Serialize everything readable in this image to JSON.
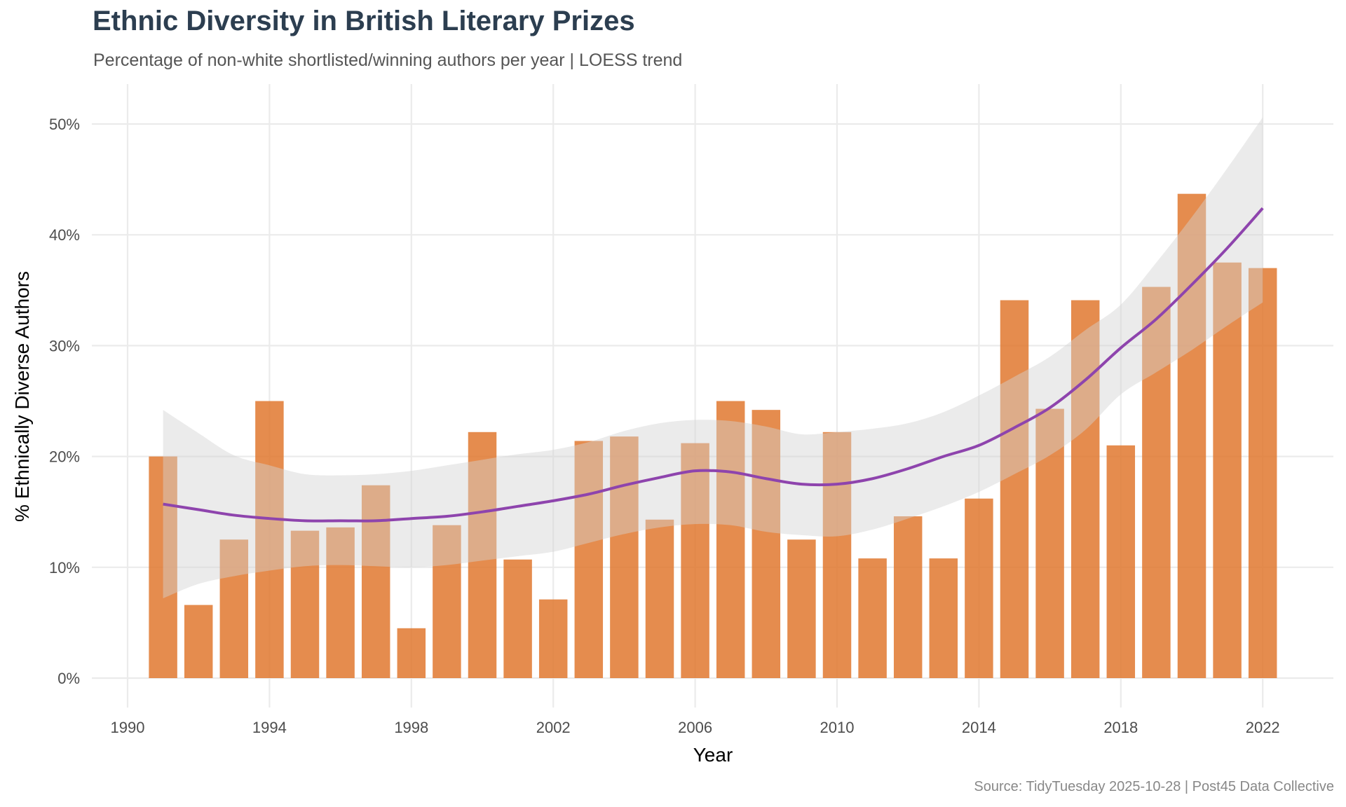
{
  "chart_data": {
    "type": "bar",
    "title": "Ethnic Diversity in British Literary Prizes",
    "subtitle": "Percentage of non-white shortlisted/winning authors per year | LOESS trend",
    "caption": "Source: TidyTuesday 2025-10-28 | Post45 Data Collective",
    "xlabel": "Year",
    "ylabel": "% Ethnically Diverse Authors",
    "xlim": [
      1989.0,
      2025.0
    ],
    "ylim": [
      0,
      52
    ],
    "x_ticks": [
      1990,
      1994,
      1998,
      2002,
      2006,
      2010,
      2014,
      2018,
      2022
    ],
    "y_ticks": [
      0,
      10,
      20,
      30,
      40,
      50
    ],
    "y_tick_labels": [
      "0%",
      "10%",
      "20%",
      "30%",
      "40%",
      "50%"
    ],
    "grid": true,
    "legend": "none",
    "colors": {
      "bar": "#E0782F",
      "loess_line": "#8E44AD",
      "ribbon": "#D3D3D3",
      "grid": "#EBEBEB",
      "title": "#2C3E50"
    },
    "x": [
      1991,
      1992,
      1993,
      1994,
      1995,
      1996,
      1997,
      1998,
      1999,
      2000,
      2001,
      2002,
      2003,
      2004,
      2005,
      2006,
      2007,
      2008,
      2009,
      2010,
      2011,
      2012,
      2013,
      2014,
      2015,
      2016,
      2017,
      2018,
      2019,
      2020,
      2021,
      2022
    ],
    "values": [
      20.0,
      6.6,
      12.5,
      25.0,
      13.3,
      13.6,
      17.4,
      4.5,
      13.8,
      22.2,
      10.7,
      7.1,
      21.4,
      21.8,
      14.3,
      21.2,
      25.0,
      24.2,
      12.5,
      22.2,
      10.8,
      14.6,
      10.8,
      16.2,
      34.1,
      24.3,
      34.1,
      21.0,
      35.3,
      43.7,
      37.5,
      37.0
    ],
    "loess": {
      "x": [
        1991,
        1992,
        1993,
        1994,
        1995,
        1996,
        1997,
        1998,
        1999,
        2000,
        2001,
        2002,
        2003,
        2004,
        2005,
        2006,
        2007,
        2008,
        2009,
        2010,
        2011,
        2012,
        2013,
        2014,
        2015,
        2016,
        2017,
        2018,
        2019,
        2020,
        2021,
        2022
      ],
      "fit": [
        15.7,
        15.2,
        14.7,
        14.4,
        14.2,
        14.2,
        14.2,
        14.4,
        14.6,
        15.0,
        15.5,
        16.0,
        16.6,
        17.4,
        18.1,
        18.7,
        18.6,
        18.0,
        17.5,
        17.5,
        18.0,
        18.9,
        20.0,
        21.0,
        22.6,
        24.4,
        26.9,
        29.8,
        32.4,
        35.5,
        38.8,
        42.4
      ],
      "lower": [
        7.2,
        8.5,
        9.2,
        9.7,
        10.1,
        10.2,
        10.1,
        10.0,
        10.2,
        10.6,
        11.0,
        11.4,
        12.2,
        13.0,
        13.6,
        13.9,
        13.8,
        13.2,
        12.9,
        12.8,
        13.4,
        14.4,
        15.5,
        16.8,
        18.4,
        20.1,
        22.4,
        25.6,
        27.6,
        29.6,
        31.8,
        33.9
      ],
      "upper": [
        24.2,
        22.1,
        20.1,
        19.2,
        18.4,
        18.3,
        18.4,
        18.7,
        19.2,
        19.7,
        20.2,
        20.6,
        21.3,
        22.3,
        23.0,
        23.3,
        23.2,
        22.7,
        22.0,
        22.2,
        22.5,
        23.0,
        24.0,
        25.5,
        27.2,
        29.0,
        31.4,
        33.7,
        37.5,
        41.6,
        46.0,
        50.6
      ]
    }
  }
}
